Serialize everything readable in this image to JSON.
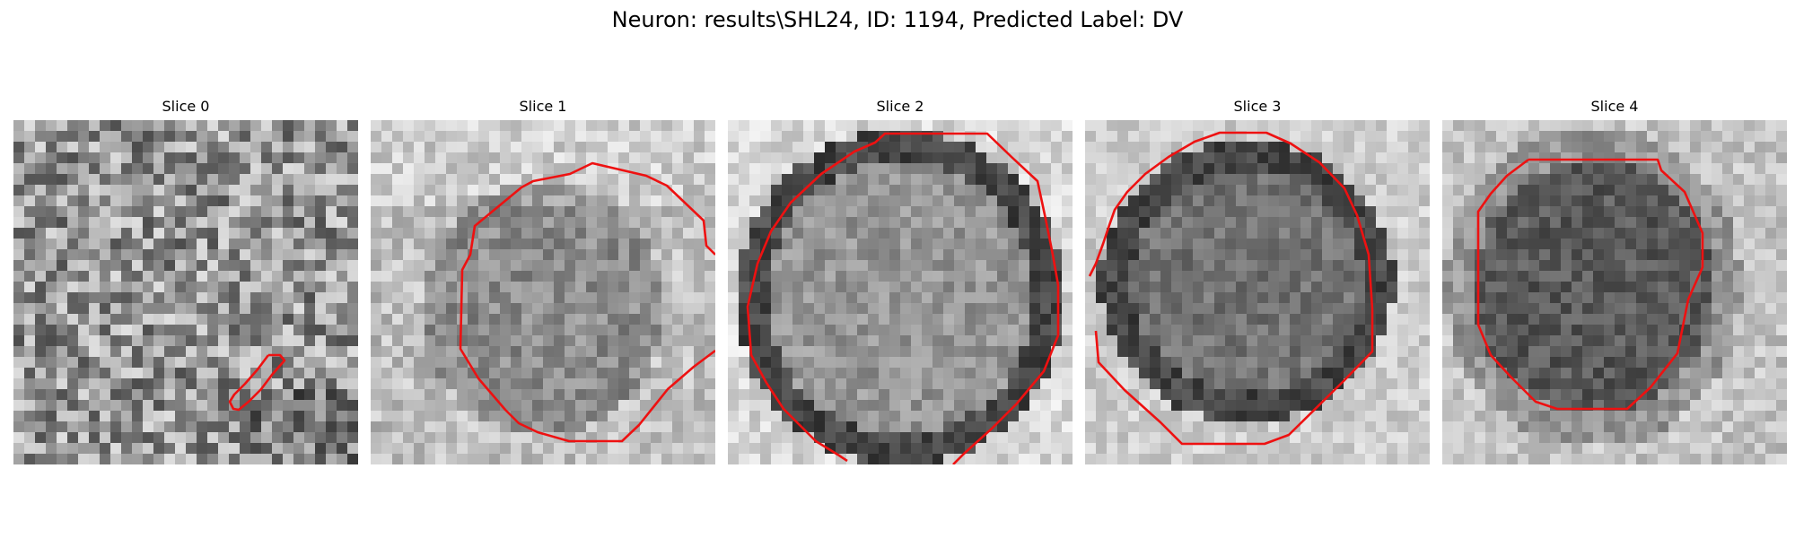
{
  "figure": {
    "title": "Neuron: results\\SHL24, ID: 1194, Predicted Label: DV"
  },
  "colors": {
    "contour": "#ee1111",
    "background": "#ffffff"
  },
  "panels": [
    {
      "title": "Slice 0"
    },
    {
      "title": "Slice 1"
    },
    {
      "title": "Slice 2"
    },
    {
      "title": "Slice 3"
    },
    {
      "title": "Slice 4"
    }
  ]
}
